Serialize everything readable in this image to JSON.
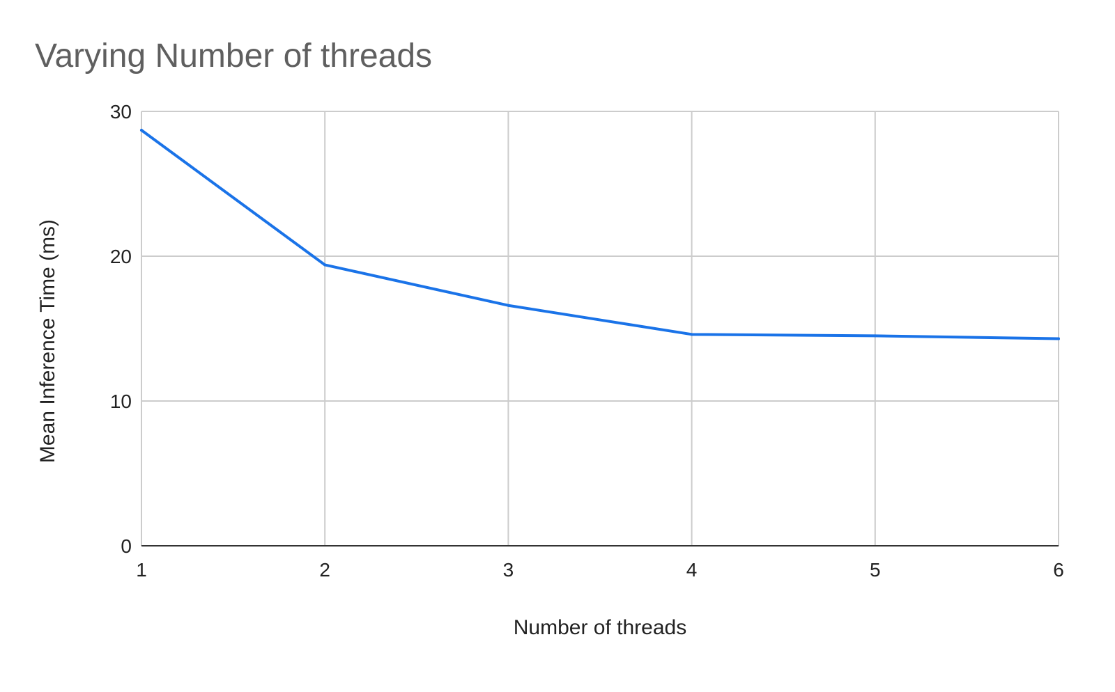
{
  "chart_data": {
    "type": "line",
    "title": "Varying Number of threads",
    "xlabel": "Number of threads",
    "ylabel": "Mean Inference Time (ms)",
    "x": [
      1,
      2,
      3,
      4,
      5,
      6
    ],
    "x_tick_labels": [
      "1",
      "2",
      "3",
      "4",
      "5",
      "6"
    ],
    "y_tick_labels": [
      "0",
      "10",
      "20",
      "30"
    ],
    "y_ticks": [
      0,
      10,
      20,
      30
    ],
    "xlim": [
      1,
      6
    ],
    "ylim": [
      0,
      30
    ],
    "grid": true,
    "series": [
      {
        "values": [
          28.7,
          19.4,
          16.6,
          14.6,
          14.5,
          14.3
        ],
        "color": "#1a73e8"
      }
    ]
  }
}
